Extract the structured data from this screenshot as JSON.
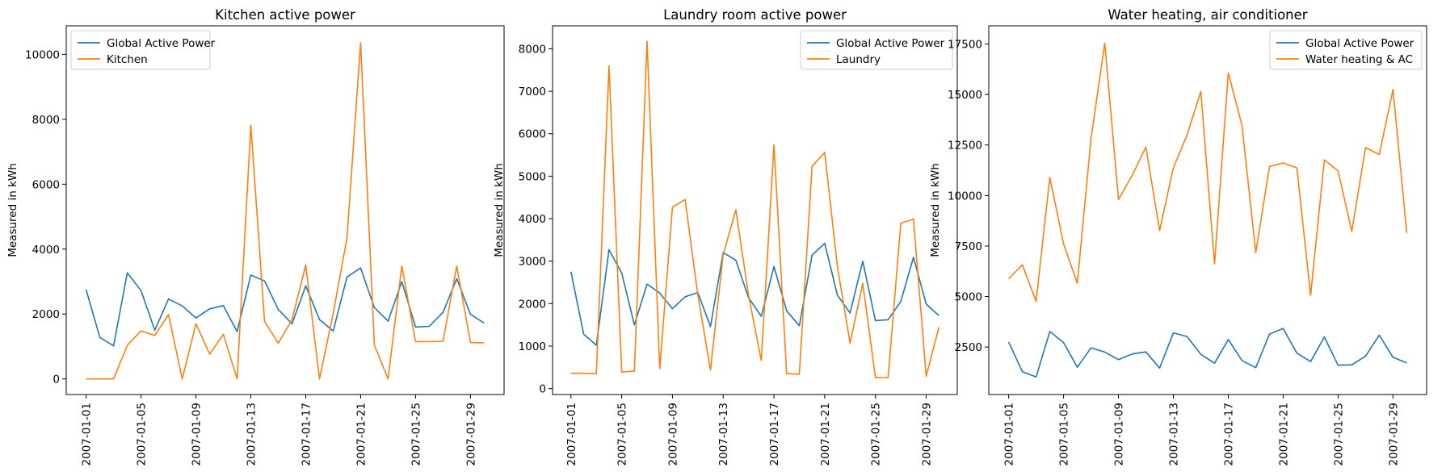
{
  "colors": {
    "global": "#1f77b4",
    "sub": "#ff7f0e"
  },
  "chart_data": [
    {
      "type": "line",
      "title": "Kitchen active power",
      "xlabel": "",
      "ylabel": "Measured in kWh",
      "x": [
        "2007-01-01",
        "2007-01-02",
        "2007-01-03",
        "2007-01-04",
        "2007-01-05",
        "2007-01-06",
        "2007-01-07",
        "2007-01-08",
        "2007-01-09",
        "2007-01-10",
        "2007-01-11",
        "2007-01-12",
        "2007-01-13",
        "2007-01-14",
        "2007-01-15",
        "2007-01-16",
        "2007-01-17",
        "2007-01-18",
        "2007-01-19",
        "2007-01-20",
        "2007-01-21",
        "2007-01-22",
        "2007-01-23",
        "2007-01-24",
        "2007-01-25",
        "2007-01-26",
        "2007-01-27",
        "2007-01-28",
        "2007-01-29",
        "2007-01-30"
      ],
      "xticks": [
        "2007-01-01",
        "2007-01-05",
        "2007-01-09",
        "2007-01-13",
        "2007-01-17",
        "2007-01-21",
        "2007-01-25",
        "2007-01-29"
      ],
      "ylim": [
        -480,
        10880
      ],
      "yticks": [
        0,
        2000,
        4000,
        6000,
        8000,
        10000
      ],
      "legend_position": "upper left",
      "grid": false,
      "series": [
        {
          "name": "Global Active Power",
          "values": [
            2750,
            1280,
            1020,
            3270,
            2720,
            1500,
            2460,
            2250,
            1880,
            2160,
            2260,
            1460,
            3200,
            3020,
            2140,
            1700,
            2870,
            1830,
            1480,
            3140,
            3420,
            2200,
            1780,
            3000,
            1600,
            1620,
            2050,
            3090,
            1990,
            1720
          ]
        },
        {
          "name": "Kitchen",
          "values": [
            0,
            0,
            0,
            1040,
            1480,
            1340,
            1980,
            0,
            1700,
            760,
            1380,
            0,
            7820,
            1770,
            1100,
            1830,
            3510,
            0,
            2020,
            4340,
            10360,
            1050,
            0,
            3480,
            1150,
            1150,
            1160,
            3480,
            1120,
            1110
          ]
        }
      ]
    },
    {
      "type": "line",
      "title": "Laundry room active power",
      "xlabel": "",
      "ylabel": "Measured in kWh",
      "x": [
        "2007-01-01",
        "2007-01-02",
        "2007-01-03",
        "2007-01-04",
        "2007-01-05",
        "2007-01-06",
        "2007-01-07",
        "2007-01-08",
        "2007-01-09",
        "2007-01-10",
        "2007-01-11",
        "2007-01-12",
        "2007-01-13",
        "2007-01-14",
        "2007-01-15",
        "2007-01-16",
        "2007-01-17",
        "2007-01-18",
        "2007-01-19",
        "2007-01-20",
        "2007-01-21",
        "2007-01-22",
        "2007-01-23",
        "2007-01-24",
        "2007-01-25",
        "2007-01-26",
        "2007-01-27",
        "2007-01-28",
        "2007-01-29",
        "2007-01-30"
      ],
      "xticks": [
        "2007-01-01",
        "2007-01-05",
        "2007-01-09",
        "2007-01-13",
        "2007-01-17",
        "2007-01-21",
        "2007-01-25",
        "2007-01-29"
      ],
      "ylim": [
        -140,
        8540
      ],
      "yticks": [
        0,
        1000,
        2000,
        3000,
        4000,
        5000,
        6000,
        7000,
        8000
      ],
      "legend_position": "upper right",
      "grid": false,
      "series": [
        {
          "name": "Global Active Power",
          "values": [
            2750,
            1280,
            1020,
            3270,
            2720,
            1500,
            2460,
            2250,
            1880,
            2160,
            2260,
            1460,
            3200,
            3020,
            2140,
            1700,
            2870,
            1830,
            1480,
            3140,
            3420,
            2200,
            1780,
            3000,
            1600,
            1620,
            2050,
            3090,
            1990,
            1720
          ]
        },
        {
          "name": "Laundry",
          "values": [
            360,
            360,
            350,
            7600,
            390,
            410,
            8180,
            470,
            4270,
            4450,
            2210,
            440,
            3150,
            4210,
            2200,
            660,
            5740,
            350,
            340,
            5230,
            5560,
            2880,
            1070,
            2480,
            260,
            260,
            3890,
            3990,
            290,
            1440
          ]
        }
      ]
    },
    {
      "type": "line",
      "title": "Water heating, air conditioner",
      "xlabel": "",
      "ylabel": "Measured in kWh",
      "x": [
        "2007-01-01",
        "2007-01-02",
        "2007-01-03",
        "2007-01-04",
        "2007-01-05",
        "2007-01-06",
        "2007-01-07",
        "2007-01-08",
        "2007-01-09",
        "2007-01-10",
        "2007-01-11",
        "2007-01-12",
        "2007-01-13",
        "2007-01-14",
        "2007-01-15",
        "2007-01-16",
        "2007-01-17",
        "2007-01-18",
        "2007-01-19",
        "2007-01-20",
        "2007-01-21",
        "2007-01-22",
        "2007-01-23",
        "2007-01-24",
        "2007-01-25",
        "2007-01-26",
        "2007-01-27",
        "2007-01-28",
        "2007-01-29",
        "2007-01-30"
      ],
      "xticks": [
        "2007-01-01",
        "2007-01-05",
        "2007-01-09",
        "2007-01-13",
        "2007-01-17",
        "2007-01-21",
        "2007-01-25",
        "2007-01-29"
      ],
      "ylim": [
        150,
        18400
      ],
      "yticks": [
        2500,
        5000,
        7500,
        10000,
        12500,
        15000,
        17500
      ],
      "legend_position": "upper right",
      "grid": false,
      "series": [
        {
          "name": "Global Active Power",
          "values": [
            2750,
            1280,
            1020,
            3270,
            2720,
            1500,
            2460,
            2250,
            1880,
            2160,
            2260,
            1460,
            3200,
            3020,
            2140,
            1700,
            2870,
            1830,
            1480,
            3140,
            3420,
            2200,
            1780,
            3000,
            1600,
            1620,
            2050,
            3090,
            1990,
            1720
          ]
        },
        {
          "name": "Water heating & AC",
          "values": [
            5880,
            6570,
            4750,
            10900,
            7600,
            5660,
            12830,
            17540,
            9800,
            11000,
            12400,
            8270,
            11370,
            13000,
            15150,
            6610,
            16070,
            13460,
            7180,
            11440,
            11610,
            11370,
            5060,
            11760,
            11220,
            8220,
            12370,
            12030,
            15250,
            8150
          ]
        }
      ]
    }
  ]
}
